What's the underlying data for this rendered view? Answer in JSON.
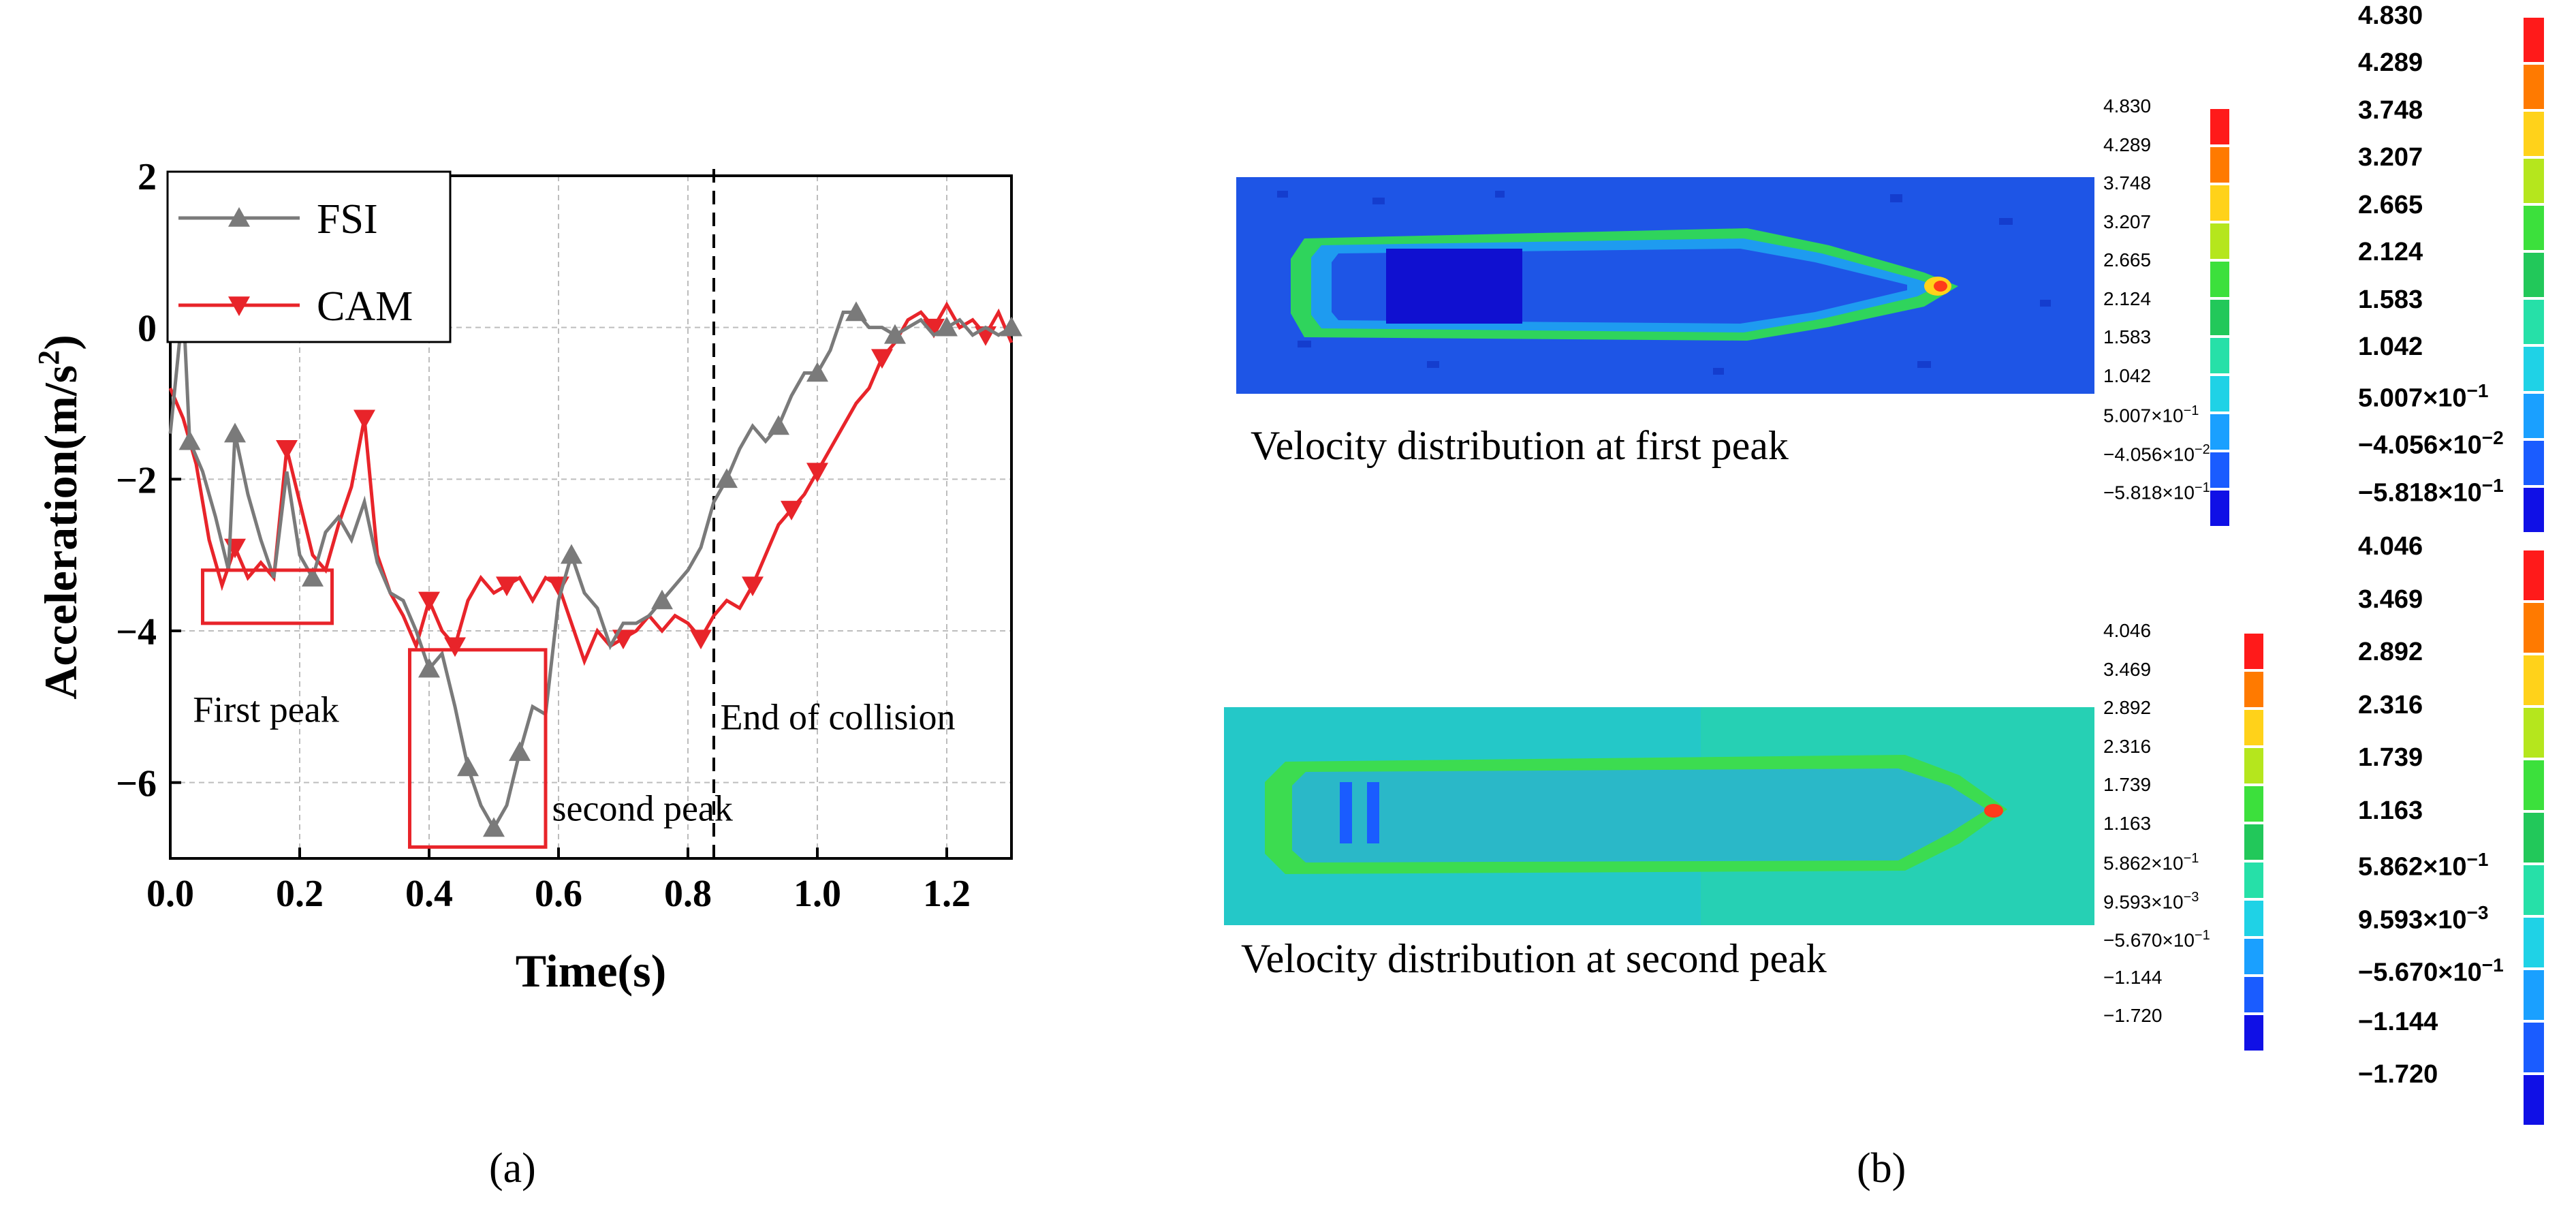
{
  "panels": {
    "a_label": "(a)",
    "b_label": "(b)"
  },
  "chart_data": {
    "type": "line",
    "xlabel": "Time(s)",
    "ylabel": "Acceleration(m/s",
    "ylabel_sup": "2",
    "ylabel_close": ")",
    "xlim": [
      0.0,
      1.3
    ],
    "ylim": [
      -7,
      2
    ],
    "xticks": [
      "0.0",
      "0.2",
      "0.4",
      "0.6",
      "0.8",
      "1.0",
      "1.2"
    ],
    "yticks": [
      "2",
      "0",
      "−2",
      "−4",
      "−6"
    ],
    "grid": true,
    "legend_position": "top-left",
    "series": [
      {
        "name": "FSI",
        "color": "#7a7a7a",
        "marker": "triangle-up",
        "x": [
          0.0,
          0.02,
          0.03,
          0.05,
          0.07,
          0.09,
          0.1,
          0.12,
          0.14,
          0.16,
          0.18,
          0.2,
          0.22,
          0.24,
          0.26,
          0.28,
          0.3,
          0.32,
          0.34,
          0.36,
          0.38,
          0.4,
          0.42,
          0.44,
          0.46,
          0.48,
          0.5,
          0.52,
          0.54,
          0.56,
          0.58,
          0.6,
          0.62,
          0.64,
          0.66,
          0.68,
          0.7,
          0.72,
          0.74,
          0.76,
          0.78,
          0.8,
          0.82,
          0.84,
          0.86,
          0.88,
          0.9,
          0.92,
          0.94,
          0.96,
          0.98,
          1.0,
          1.02,
          1.04,
          1.06,
          1.08,
          1.1,
          1.12,
          1.14,
          1.16,
          1.18,
          1.2,
          1.22,
          1.24,
          1.26,
          1.28,
          1.3
        ],
        "y": [
          -1.4,
          0.3,
          -1.5,
          -1.9,
          -2.5,
          -3.2,
          -1.4,
          -2.2,
          -2.8,
          -3.3,
          -1.9,
          -3.0,
          -3.3,
          -2.7,
          -2.5,
          -2.8,
          -2.3,
          -3.1,
          -3.5,
          -3.6,
          -4.0,
          -4.5,
          -4.3,
          -5.0,
          -5.8,
          -6.3,
          -6.6,
          -6.3,
          -5.6,
          -5.0,
          -5.1,
          -3.6,
          -3.0,
          -3.5,
          -3.7,
          -4.2,
          -3.9,
          -3.9,
          -3.8,
          -3.6,
          -3.4,
          -3.2,
          -2.9,
          -2.3,
          -2.0,
          -1.6,
          -1.3,
          -1.5,
          -1.3,
          -0.9,
          -0.6,
          -0.6,
          -0.3,
          0.2,
          0.2,
          0.0,
          0.0,
          -0.1,
          0.0,
          0.1,
          -0.1,
          0.0,
          0.1,
          -0.1,
          0.0,
          -0.1,
          0.0
        ],
        "marker_indices": [
          2,
          6,
          12,
          21,
          24,
          26,
          28,
          32,
          39,
          44,
          48,
          51,
          54,
          57,
          61,
          66
        ]
      },
      {
        "name": "CAM",
        "color": "#e8242a",
        "marker": "triangle-down",
        "x": [
          0.0,
          0.02,
          0.04,
          0.06,
          0.08,
          0.1,
          0.12,
          0.14,
          0.16,
          0.18,
          0.2,
          0.22,
          0.24,
          0.26,
          0.28,
          0.3,
          0.32,
          0.34,
          0.36,
          0.38,
          0.4,
          0.42,
          0.44,
          0.46,
          0.48,
          0.5,
          0.52,
          0.54,
          0.56,
          0.58,
          0.6,
          0.62,
          0.64,
          0.66,
          0.68,
          0.7,
          0.72,
          0.74,
          0.76,
          0.78,
          0.8,
          0.82,
          0.84,
          0.86,
          0.88,
          0.9,
          0.92,
          0.94,
          0.96,
          0.98,
          1.0,
          1.02,
          1.04,
          1.06,
          1.08,
          1.1,
          1.12,
          1.14,
          1.16,
          1.18,
          1.2,
          1.22,
          1.24,
          1.26,
          1.28,
          1.3
        ],
        "y": [
          -0.8,
          -1.2,
          -1.8,
          -2.8,
          -3.4,
          -2.9,
          -3.3,
          -3.1,
          -3.3,
          -1.6,
          -2.3,
          -3.0,
          -3.2,
          -2.6,
          -2.1,
          -1.2,
          -3.0,
          -3.5,
          -3.8,
          -4.2,
          -3.6,
          -4.0,
          -4.2,
          -3.6,
          -3.3,
          -3.5,
          -3.4,
          -3.3,
          -3.6,
          -3.3,
          -3.4,
          -3.9,
          -4.4,
          -4.0,
          -4.2,
          -4.1,
          -4.0,
          -3.8,
          -4.0,
          -3.8,
          -3.9,
          -4.1,
          -3.8,
          -3.6,
          -3.7,
          -3.4,
          -3.0,
          -2.6,
          -2.4,
          -2.2,
          -1.9,
          -1.6,
          -1.3,
          -1.0,
          -0.8,
          -0.4,
          -0.2,
          0.1,
          0.2,
          0.0,
          0.3,
          0.0,
          0.1,
          -0.1,
          0.2,
          -0.2
        ],
        "marker_indices": [
          5,
          9,
          15,
          20,
          22,
          26,
          30,
          35,
          41,
          45,
          48,
          50,
          55,
          59,
          63
        ]
      }
    ],
    "annotations": [
      {
        "text": "First peak",
        "x": 0.035,
        "y": -5.2
      },
      {
        "text": "second peak",
        "x": 0.59,
        "y": -6.5
      },
      {
        "text": "End of collision",
        "x": 0.85,
        "y": -5.3
      }
    ],
    "vline": {
      "x": 0.84,
      "style": "dashed"
    },
    "boxes": [
      {
        "x0": 0.05,
        "x1": 0.25,
        "y0": -3.9,
        "y1": -3.2,
        "color": "#e8242a"
      },
      {
        "x0": 0.37,
        "x1": 0.58,
        "y0": -6.85,
        "y1": -4.25,
        "color": "#e8242a"
      }
    ]
  },
  "contours": {
    "first": {
      "caption": "Velocity distribution at first peak",
      "scale_labels": [
        "4.830",
        "4.289",
        "3.748",
        "3.207",
        "2.665",
        "2.124",
        "1.583",
        "1.042",
        "5.007×10",
        "−4.056×10",
        "−5.818×10"
      ],
      "scale_exponents": [
        "",
        "",
        "",
        "",
        "",
        "",
        "",
        "",
        "−1",
        "−2",
        "−1"
      ]
    },
    "second": {
      "caption": "Velocity distribution at second peak",
      "scale_labels": [
        "4.046",
        "3.469",
        "2.892",
        "2.316",
        "1.739",
        "1.163",
        "5.862×10",
        "9.593×10",
        "−5.670×10",
        "−1.144",
        "−1.720"
      ],
      "scale_exponents": [
        "",
        "",
        "",
        "",
        "",
        "",
        "−1",
        "−3",
        "−1",
        "",
        ""
      ]
    },
    "colormap": [
      "#ff1a1a",
      "#ff7a00",
      "#ffd21a",
      "#b5e61d",
      "#3ce03c",
      "#22c85a",
      "#26e0a8",
      "#1fd2e6",
      "#1aa0ff",
      "#1a5cff",
      "#1010e6"
    ]
  }
}
